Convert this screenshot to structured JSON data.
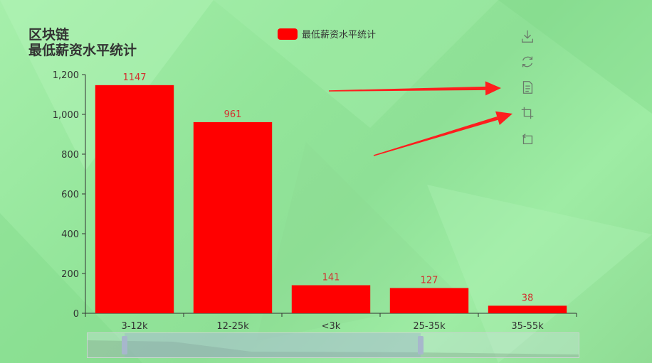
{
  "title_line1": "区块链",
  "title_line2": "最低薪资水平统计",
  "legend": {
    "label": "最低薪资水平统计",
    "color": "#ff0000"
  },
  "toolbox": [
    "download-icon",
    "refresh-icon",
    "data-view-icon",
    "zoom-icon",
    "zoom-reset-icon"
  ],
  "arrows_color": "#ff1e1e",
  "chart_data": {
    "type": "bar",
    "title": "区块链 最低薪资水平统计",
    "categories": [
      "3-12k",
      "12-25k",
      "<3k",
      "25-35k",
      "35-55k"
    ],
    "series": [
      {
        "name": "最低薪资水平统计",
        "values": [
          1147,
          961,
          141,
          127,
          38
        ],
        "color": "#ff0000"
      }
    ],
    "ylim": [
      0,
      1200
    ],
    "yticks": [
      "0",
      "200",
      "400",
      "600",
      "800",
      "1,000",
      "1,200"
    ],
    "grid": false,
    "legend_position": "top-center",
    "data_zoom": {
      "start_fraction": 0.077,
      "end_fraction": 0.69
    }
  }
}
